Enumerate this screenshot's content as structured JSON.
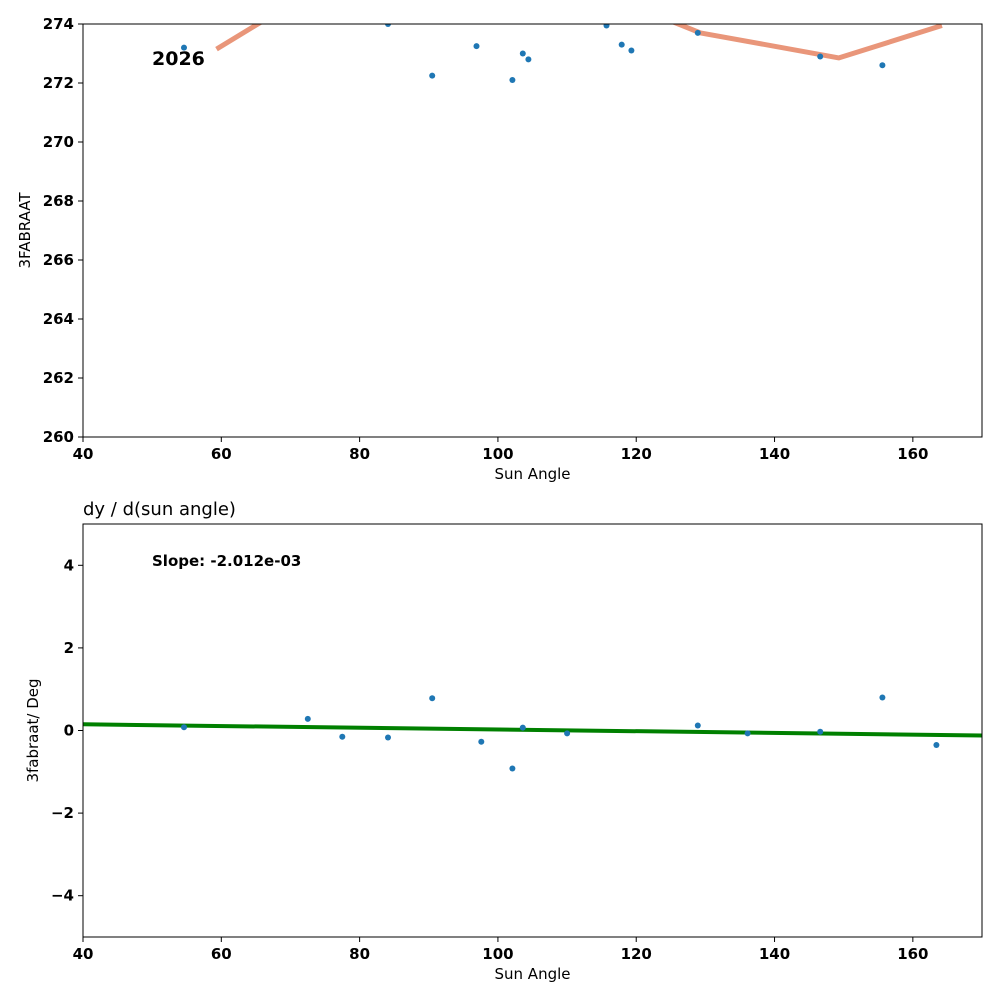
{
  "chart_data": [
    {
      "type": "scatter",
      "title": "",
      "xlabel": "Sun Angle",
      "ylabel": "3FABRAAT",
      "xlim": [
        40,
        170
      ],
      "ylim": [
        260,
        274
      ],
      "xticks": [
        40,
        60,
        80,
        100,
        120,
        140,
        160
      ],
      "yticks": [
        260,
        262,
        264,
        266,
        268,
        270,
        272,
        274
      ],
      "grid": false,
      "annotation": "2026",
      "line_color": "#e9967a",
      "point_color": "#1f77b4",
      "series": [
        {
          "kind": "points",
          "x": [
            54.6,
            84.1,
            90.5,
            96.9,
            102.1,
            103.6,
            104.4,
            115.7,
            117.9,
            119.3,
            128.9,
            146.6,
            155.6
          ],
          "y": [
            273.2,
            274.0,
            272.25,
            273.25,
            272.1,
            273.0,
            272.8,
            273.95,
            273.3,
            273.1,
            273.7,
            272.9,
            272.6
          ]
        },
        {
          "kind": "line",
          "x": [
            59.3,
            66.0,
            125.0,
            129.3,
            149.3,
            164.2
          ],
          "y": [
            273.15,
            274.1,
            274.1,
            273.7,
            272.85,
            273.95
          ]
        }
      ]
    },
    {
      "type": "scatter",
      "title": "dy / d(sun angle)",
      "xlabel": "Sun Angle",
      "ylabel": "3fabraat/ Deg",
      "xlim": [
        40,
        170
      ],
      "ylim": [
        -5,
        5
      ],
      "xticks": [
        40,
        60,
        80,
        100,
        120,
        140,
        160
      ],
      "yticks": [
        -4,
        -2,
        0,
        2,
        4
      ],
      "ytick_labels": [
        "−4",
        "−2",
        "0",
        "2",
        "4"
      ],
      "grid": false,
      "annotation": "Slope: -2.012e-03",
      "line_color": "#008000",
      "point_color": "#1f77b4",
      "series": [
        {
          "kind": "points",
          "x": [
            54.6,
            72.5,
            77.5,
            84.1,
            90.5,
            97.6,
            102.1,
            103.6,
            110.0,
            128.9,
            136.1,
            146.6,
            155.6,
            163.4
          ],
          "y": [
            0.08,
            0.28,
            -0.15,
            -0.17,
            0.78,
            -0.27,
            -0.92,
            0.07,
            -0.07,
            0.12,
            -0.07,
            -0.03,
            0.8,
            -0.35
          ]
        },
        {
          "kind": "line",
          "x": [
            40,
            170
          ],
          "y": [
            0.15,
            -0.12
          ]
        }
      ]
    }
  ]
}
